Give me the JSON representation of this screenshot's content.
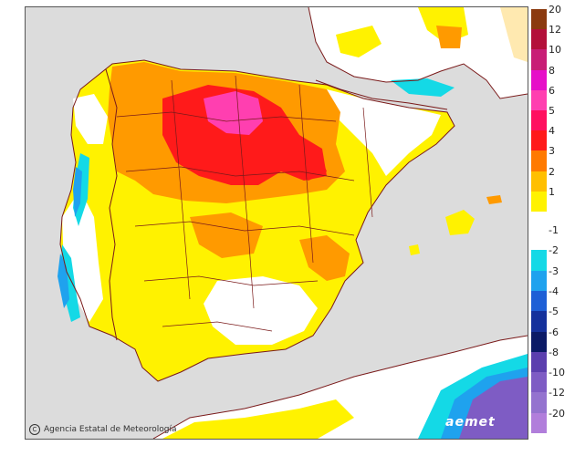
{
  "credit": {
    "icon": "copyright-icon",
    "text": "Agencia Estatal de Meteorología"
  },
  "brand": {
    "icon": "aemet-logo-icon",
    "text": "aemet"
  },
  "legend": {
    "entries": [
      {
        "label": "20",
        "color": "#8b3a0f"
      },
      {
        "label": "12",
        "color": "#b3103a"
      },
      {
        "label": "10",
        "color": "#c81e76"
      },
      {
        "label": "8",
        "color": "#e60fc8"
      },
      {
        "label": "6",
        "color": "#ff3fb0"
      },
      {
        "label": "5",
        "color": "#ff1060"
      },
      {
        "label": "4",
        "color": "#ff1a1a"
      },
      {
        "label": "3",
        "color": "#ff7a00"
      },
      {
        "label": "2",
        "color": "#ffbf00"
      },
      {
        "label": "1",
        "color": "#fff200"
      },
      {
        "label": "-1",
        "color": "#ffffff"
      },
      {
        "label": "-2",
        "color": "#14d9e6"
      },
      {
        "label": "-3",
        "color": "#1fa2ee"
      },
      {
        "label": "-4",
        "color": "#1e5fd6"
      },
      {
        "label": "-5",
        "color": "#15319c"
      },
      {
        "label": "-6",
        "color": "#0b1a66"
      },
      {
        "label": "-8",
        "color": "#5b3fae"
      },
      {
        "label": "-10",
        "color": "#7e5cc4"
      },
      {
        "label": "-12",
        "color": "#9473cf"
      },
      {
        "label": "-20",
        "color": "#b17edb"
      }
    ]
  },
  "colors": {
    "sea": "#dcdcdc",
    "land_base": "#fff200",
    "orange": "#ff9a00",
    "red": "#ff1a1a",
    "magenta": "#ff3fb0",
    "cyan": "#14d9e6",
    "blue": "#1fa2ee",
    "purple": "#7e5cc4",
    "boundary": "#7a1a1a"
  }
}
